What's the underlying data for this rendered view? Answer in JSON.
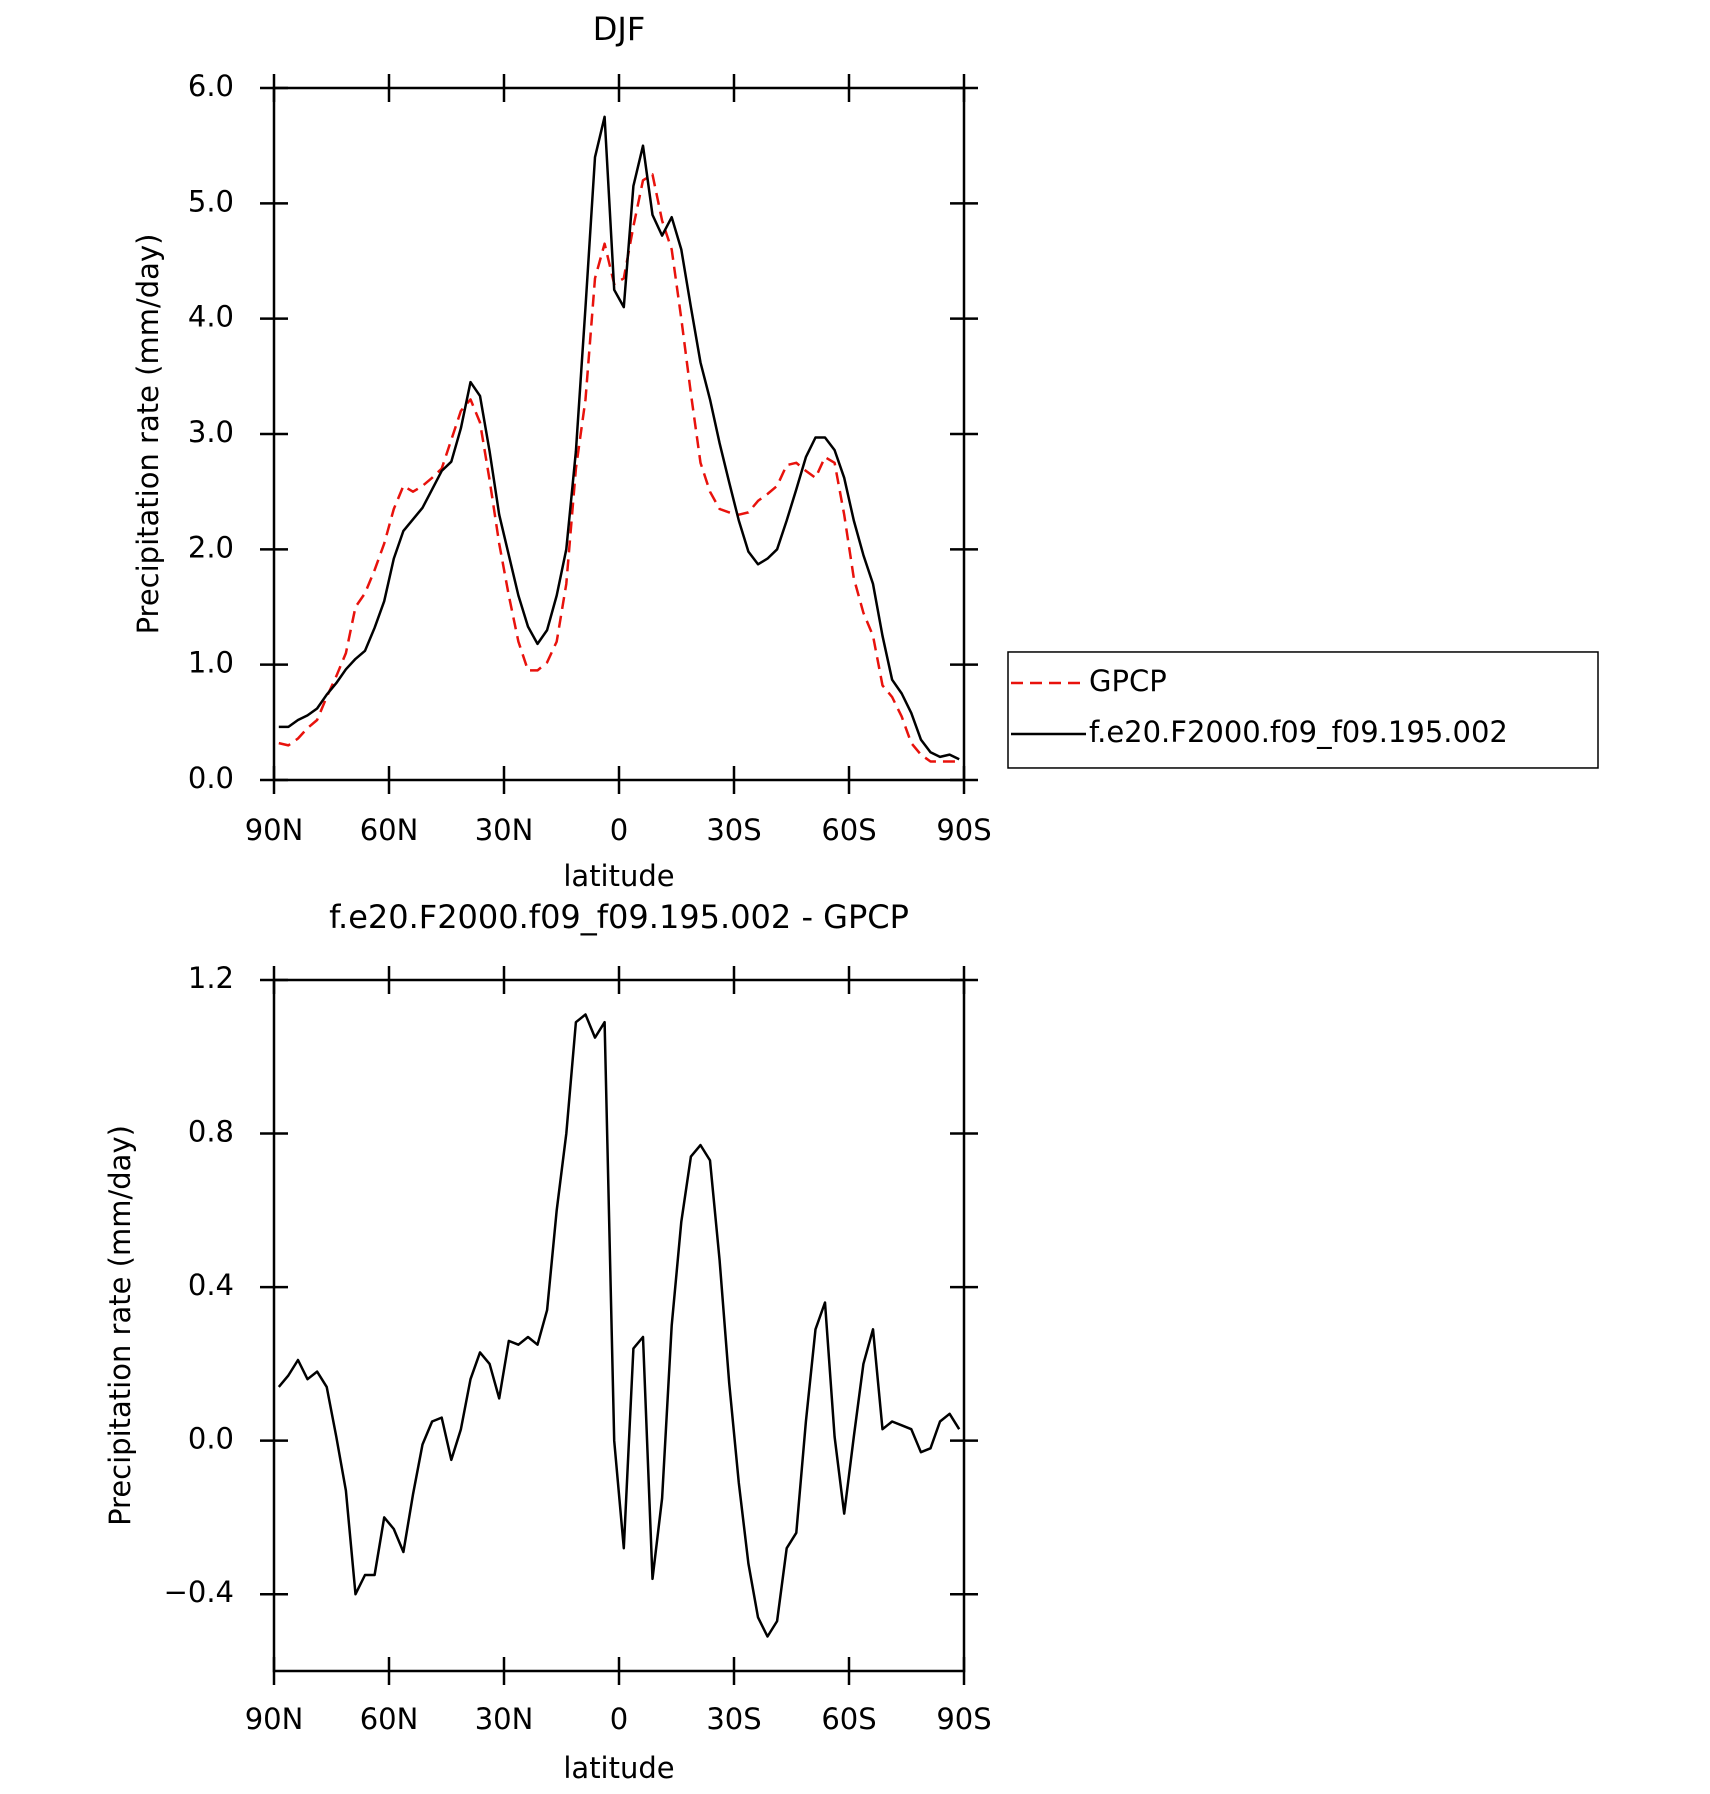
{
  "chart_data": [
    {
      "type": "line",
      "title": "DJF",
      "xlabel": "latitude",
      "ylabel": "Precipitation rate (mm/day)",
      "x": [
        88.75,
        86.25,
        83.75,
        81.25,
        78.75,
        76.25,
        73.75,
        71.25,
        68.75,
        66.25,
        63.75,
        61.25,
        58.75,
        56.25,
        53.75,
        51.25,
        48.75,
        46.25,
        43.75,
        41.25,
        38.75,
        36.25,
        33.75,
        31.25,
        28.75,
        26.25,
        23.75,
        21.25,
        18.75,
        16.25,
        13.75,
        11.25,
        8.75,
        6.25,
        3.75,
        1.25,
        -1.25,
        -3.75,
        -6.25,
        -8.75,
        -11.25,
        -13.75,
        -16.25,
        -18.75,
        -21.25,
        -23.75,
        -26.25,
        -28.75,
        -31.25,
        -33.75,
        -36.25,
        -38.75,
        -41.25,
        -43.75,
        -46.25,
        -48.75,
        -51.25,
        -53.75,
        -56.25,
        -58.75,
        -61.25,
        -63.75,
        -66.25,
        -68.75,
        -71.25,
        -73.75,
        -76.25,
        -78.75,
        -81.25,
        -83.75,
        -86.25,
        -88.75
      ],
      "series": [
        {
          "name": "GPCP",
          "color": "#e8120c",
          "dashed": true,
          "values": [
            0.32,
            0.3,
            0.36,
            0.45,
            0.52,
            0.72,
            0.9,
            1.1,
            1.5,
            1.62,
            1.82,
            2.05,
            2.35,
            2.55,
            2.5,
            2.55,
            2.62,
            2.7,
            2.95,
            3.2,
            3.3,
            3.1,
            2.6,
            2.05,
            1.6,
            1.2,
            0.95,
            0.95,
            1.02,
            1.2,
            1.7,
            2.7,
            3.3,
            4.35,
            4.65,
            4.3,
            4.35,
            4.8,
            5.2,
            5.25,
            4.85,
            4.6,
            4.0,
            3.35,
            2.75,
            2.5,
            2.35,
            2.32,
            2.3,
            2.32,
            2.42,
            2.48,
            2.55,
            2.73,
            2.75,
            2.68,
            2.62,
            2.8,
            2.75,
            2.3,
            1.75,
            1.45,
            1.25,
            0.82,
            0.72,
            0.55,
            0.32,
            0.22,
            0.16,
            0.16,
            0.16,
            0.16
          ]
        },
        {
          "name": "f.e20.F2000.f09_f09.195.002",
          "color": "#000000",
          "dashed": false,
          "values": [
            0.46,
            0.46,
            0.52,
            0.56,
            0.62,
            0.74,
            0.84,
            0.96,
            1.05,
            1.12,
            1.32,
            1.55,
            1.92,
            2.16,
            2.26,
            2.36,
            2.52,
            2.68,
            2.76,
            3.05,
            3.45,
            3.33,
            2.85,
            2.3,
            1.95,
            1.6,
            1.33,
            1.18,
            1.3,
            1.6,
            2.0,
            2.85,
            4.1,
            5.4,
            5.75,
            4.25,
            4.1,
            5.15,
            5.5,
            4.9,
            4.72,
            4.88,
            4.6,
            4.1,
            3.62,
            3.3,
            2.92,
            2.58,
            2.25,
            1.98,
            1.87,
            1.92,
            2.0,
            2.25,
            2.52,
            2.8,
            2.97,
            2.97,
            2.86,
            2.62,
            2.25,
            1.95,
            1.7,
            1.25,
            0.87,
            0.75,
            0.58,
            0.35,
            0.24,
            0.2,
            0.22,
            0.18
          ]
        }
      ],
      "xlim": [
        90,
        -90
      ],
      "xticks": [
        {
          "value": 90,
          "label": "90N"
        },
        {
          "value": 60,
          "label": "60N"
        },
        {
          "value": 30,
          "label": "30N"
        },
        0,
        {
          "value": -30,
          "label": "30S"
        },
        {
          "value": -60,
          "label": "60S"
        },
        {
          "value": -90,
          "label": "90S"
        }
      ],
      "ylim": [
        0,
        6
      ],
      "yticks": [
        {
          "value": 0,
          "label": "0.0"
        },
        {
          "value": 1,
          "label": "1.0"
        },
        {
          "value": 2,
          "label": "2.0"
        },
        {
          "value": 3,
          "label": "3.0"
        },
        {
          "value": 4,
          "label": "4.0"
        },
        {
          "value": 5,
          "label": "5.0"
        },
        {
          "value": 6,
          "label": "6.0"
        }
      ],
      "grid": false,
      "legend": "right"
    },
    {
      "type": "line",
      "title": "f.e20.F2000.f09_f09.195.002 - GPCP",
      "xlabel": "latitude",
      "ylabel": "Precipitation rate (mm/day)",
      "x": [
        88.75,
        86.25,
        83.75,
        81.25,
        78.75,
        76.25,
        73.75,
        71.25,
        68.75,
        66.25,
        63.75,
        61.25,
        58.75,
        56.25,
        53.75,
        51.25,
        48.75,
        46.25,
        43.75,
        41.25,
        38.75,
        36.25,
        33.75,
        31.25,
        28.75,
        26.25,
        23.75,
        21.25,
        18.75,
        16.25,
        13.75,
        11.25,
        8.75,
        6.25,
        3.75,
        1.25,
        -1.25,
        -3.75,
        -6.25,
        -8.75,
        -11.25,
        -13.75,
        -16.25,
        -18.75,
        -21.25,
        -23.75,
        -26.25,
        -28.75,
        -31.25,
        -33.75,
        -36.25,
        -38.75,
        -41.25,
        -43.75,
        -46.25,
        -48.75,
        -51.25,
        -53.75,
        -56.25,
        -58.75,
        -61.25,
        -63.75,
        -66.25,
        -68.75,
        -71.25,
        -73.75,
        -76.25,
        -78.75,
        -81.25,
        -83.75,
        -86.25,
        -88.75
      ],
      "values": [
        0.14,
        0.17,
        0.21,
        0.16,
        0.18,
        0.14,
        0.01,
        -0.13,
        -0.4,
        -0.35,
        -0.35,
        -0.2,
        -0.23,
        -0.29,
        -0.14,
        -0.01,
        0.05,
        0.06,
        -0.05,
        0.03,
        0.16,
        0.23,
        0.2,
        0.11,
        0.26,
        0.25,
        0.27,
        0.25,
        0.34,
        0.6,
        0.8,
        1.09,
        1.11,
        1.05,
        1.09,
        0.0,
        -0.28,
        0.24,
        0.27,
        -0.36,
        -0.15,
        0.3,
        0.57,
        0.74,
        0.77,
        0.73,
        0.47,
        0.15,
        -0.11,
        -0.32,
        -0.46,
        -0.51,
        -0.47,
        -0.28,
        -0.24,
        0.05,
        0.29,
        0.36,
        0.01,
        -0.19,
        0.01,
        0.2,
        0.29,
        0.03,
        0.05,
        0.04,
        0.03,
        -0.03,
        -0.02,
        0.05,
        0.07,
        0.03
      ],
      "color": "#000000",
      "xlim": [
        90,
        -90
      ],
      "xticks": [
        {
          "value": 90,
          "label": "90N"
        },
        {
          "value": 60,
          "label": "60N"
        },
        {
          "value": 30,
          "label": "30N"
        },
        0,
        {
          "value": -30,
          "label": "30S"
        },
        {
          "value": -60,
          "label": "60S"
        },
        {
          "value": -90,
          "label": "90S"
        }
      ],
      "ylim": [
        -0.6,
        1.2
      ],
      "yticks": [
        {
          "value": -0.4,
          "label": "−0.4"
        },
        {
          "value": 0,
          "label": "0.0"
        },
        0.4,
        0.8,
        1.2
      ],
      "grid": false
    }
  ]
}
